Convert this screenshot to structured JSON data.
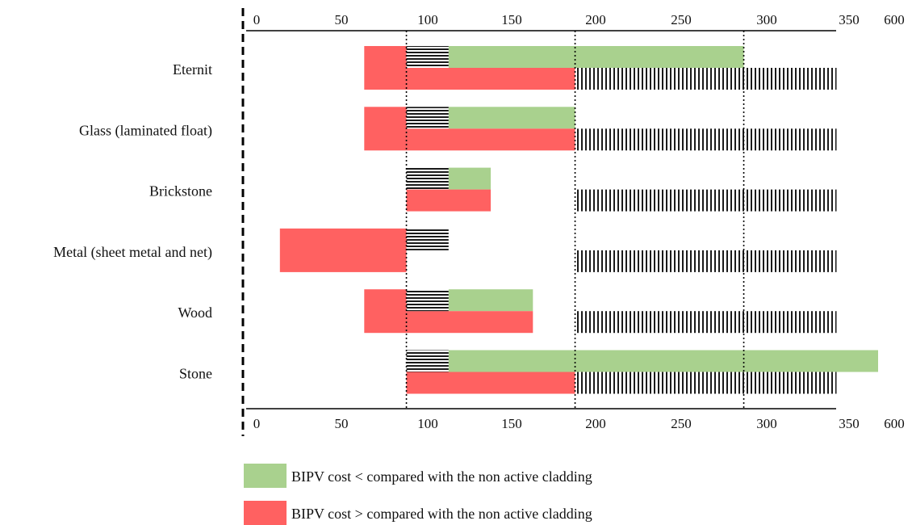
{
  "chart_data": {
    "type": "bar",
    "orientation": "horizontal",
    "categories": [
      "Eternit",
      "Glass (laminated float)",
      "Brickstone",
      "Metal (sheet metal and net)",
      "Wood",
      "Stone"
    ],
    "x_ticks": [
      "0",
      "50",
      "100",
      "150",
      "200",
      "250",
      "300",
      "350",
      "600"
    ],
    "xlim": [
      0,
      600
    ],
    "x_axis_breaks": [
      {
        "from": 350,
        "to": 600
      }
    ],
    "reference_lines": [
      95,
      195,
      295
    ],
    "grid": false,
    "legend_position": "bottom-left",
    "colors": {
      "green": "#a9d18e",
      "red": "#ff6161",
      "hatch": "#1a1a1a",
      "axis": "#000000"
    },
    "series": [
      {
        "name": "BIPV cost < compared with the non active cladding",
        "color": "#a9d18e",
        "row": "top",
        "ranges": [
          [
            120,
            295
          ],
          [
            120,
            195
          ],
          [
            120,
            145
          ],
          null,
          [
            120,
            170
          ],
          [
            120,
            600
          ]
        ]
      },
      {
        "name": "BIPV cost > compared with the non active cladding",
        "color": "#ff6161",
        "row": "both",
        "ranges": [
          [
            70,
            95
          ],
          [
            70,
            95
          ],
          null,
          [
            20,
            95
          ],
          [
            70,
            95
          ],
          null
        ]
      },
      {
        "color": "#ff6161",
        "row": "bottom",
        "ranges": [
          [
            95,
            195
          ],
          [
            95,
            195
          ],
          [
            95,
            145
          ],
          null,
          [
            95,
            170
          ],
          [
            95,
            195
          ]
        ]
      },
      {
        "pattern": "horizontal-hatch",
        "row": "top",
        "ranges": [
          [
            95,
            120
          ],
          [
            95,
            120
          ],
          [
            95,
            120
          ],
          [
            95,
            120
          ],
          [
            95,
            120
          ],
          [
            95,
            120
          ]
        ]
      },
      {
        "pattern": "vertical-hatch",
        "row": "bottom",
        "ranges": [
          [
            195,
            350
          ],
          [
            195,
            350
          ],
          [
            195,
            350
          ],
          [
            195,
            350
          ],
          [
            195,
            350
          ],
          [
            195,
            350
          ]
        ]
      }
    ]
  }
}
